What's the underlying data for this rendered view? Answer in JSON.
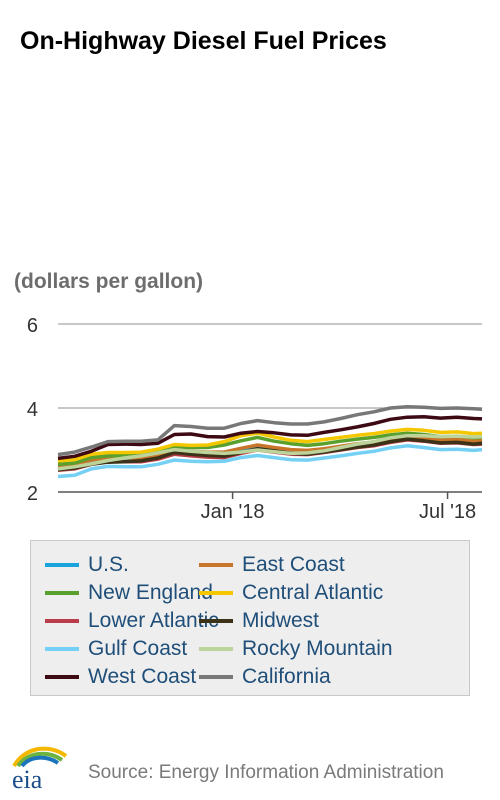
{
  "title": "On-Highway Diesel Fuel Prices",
  "units": "(dollars per gallon)",
  "source": "Source: Energy Information Administration",
  "logo_text": "eia",
  "chart_data": {
    "type": "line",
    "title": "On-Highway Diesel Fuel Prices",
    "ylabel": "(dollars per gallon)",
    "ylim": [
      2,
      6
    ],
    "yticks": [
      "2",
      "4",
      "6"
    ],
    "x_start": "2017-08-07",
    "x_end": "2018-07-30",
    "xticks": [
      {
        "label": "Jan '18",
        "date": "2018-01-01"
      },
      {
        "label": "Jul '18",
        "date": "2018-07-01"
      }
    ],
    "grid": "horizontal",
    "legend_position": "bottom",
    "x": [
      "2017-08-07",
      "2017-08-21",
      "2017-09-04",
      "2017-09-18",
      "2017-10-02",
      "2017-10-16",
      "2017-10-30",
      "2017-11-13",
      "2017-11-27",
      "2017-12-11",
      "2017-12-25",
      "2018-01-08",
      "2018-01-22",
      "2018-02-05",
      "2018-02-19",
      "2018-03-05",
      "2018-03-19",
      "2018-04-02",
      "2018-04-16",
      "2018-04-30",
      "2018-05-14",
      "2018-05-28",
      "2018-06-11",
      "2018-06-25",
      "2018-07-09",
      "2018-07-23",
      "2018-07-30"
    ],
    "series": [
      {
        "name": "U.S.",
        "color": "#1aa3dd",
        "values": [
          2.59,
          2.62,
          2.73,
          2.78,
          2.78,
          2.79,
          2.85,
          2.97,
          2.94,
          2.92,
          2.91,
          3.0,
          3.08,
          3.03,
          2.98,
          2.96,
          3.0,
          3.06,
          3.12,
          3.16,
          3.24,
          3.29,
          3.26,
          3.21,
          3.22,
          3.18,
          3.2
        ]
      },
      {
        "name": "East Coast",
        "color": "#c8752a",
        "values": [
          2.62,
          2.65,
          2.76,
          2.81,
          2.81,
          2.82,
          2.88,
          3.0,
          2.97,
          2.95,
          2.95,
          3.04,
          3.12,
          3.06,
          3.01,
          2.99,
          3.03,
          3.09,
          3.15,
          3.19,
          3.27,
          3.32,
          3.29,
          3.24,
          3.25,
          3.21,
          3.23
        ]
      },
      {
        "name": "New England",
        "color": "#5aa02c",
        "values": [
          2.66,
          2.69,
          2.82,
          2.86,
          2.87,
          2.89,
          2.94,
          3.07,
          3.06,
          3.06,
          3.12,
          3.22,
          3.3,
          3.21,
          3.15,
          3.11,
          3.15,
          3.21,
          3.26,
          3.3,
          3.36,
          3.4,
          3.37,
          3.32,
          3.33,
          3.29,
          3.3
        ]
      },
      {
        "name": "Central Atlantic",
        "color": "#f5c700",
        "values": [
          2.74,
          2.77,
          2.9,
          2.94,
          2.94,
          2.95,
          3.02,
          3.13,
          3.11,
          3.12,
          3.2,
          3.34,
          3.4,
          3.31,
          3.23,
          3.2,
          3.25,
          3.3,
          3.35,
          3.39,
          3.45,
          3.49,
          3.47,
          3.42,
          3.43,
          3.39,
          3.4
        ]
      },
      {
        "name": "Lower Atlantic",
        "color": "#b83c49",
        "values": [
          2.52,
          2.55,
          2.66,
          2.73,
          2.72,
          2.72,
          2.78,
          2.9,
          2.86,
          2.83,
          2.82,
          2.92,
          3.0,
          2.95,
          2.9,
          2.89,
          2.94,
          3.0,
          3.06,
          3.1,
          3.18,
          3.24,
          3.21,
          3.16,
          3.17,
          3.13,
          3.14
        ]
      },
      {
        "name": "Midwest",
        "color": "#3b3218",
        "values": [
          2.53,
          2.57,
          2.66,
          2.71,
          2.72,
          2.74,
          2.81,
          2.94,
          2.9,
          2.87,
          2.85,
          2.94,
          3.03,
          2.98,
          2.92,
          2.9,
          2.95,
          3.01,
          3.07,
          3.12,
          3.2,
          3.26,
          3.22,
          3.17,
          3.18,
          3.14,
          3.16
        ]
      },
      {
        "name": "Gulf Coast",
        "color": "#74d0f4",
        "values": [
          2.37,
          2.4,
          2.55,
          2.61,
          2.6,
          2.6,
          2.66,
          2.76,
          2.73,
          2.72,
          2.73,
          2.82,
          2.87,
          2.82,
          2.77,
          2.76,
          2.81,
          2.86,
          2.92,
          2.97,
          3.05,
          3.1,
          3.06,
          3.01,
          3.02,
          2.99,
          3.01
        ]
      },
      {
        "name": "Rocky Mountain",
        "color": "#bcd49b",
        "values": [
          2.55,
          2.6,
          2.67,
          2.75,
          2.81,
          2.86,
          2.93,
          3.01,
          2.97,
          2.94,
          2.92,
          2.95,
          3.0,
          2.96,
          2.92,
          2.93,
          2.98,
          3.06,
          3.14,
          3.2,
          3.29,
          3.34,
          3.34,
          3.32,
          3.33,
          3.31,
          3.32
        ]
      },
      {
        "name": "West Coast",
        "color": "#3d0a14",
        "values": [
          2.8,
          2.85,
          2.97,
          3.13,
          3.14,
          3.13,
          3.16,
          3.37,
          3.38,
          3.32,
          3.31,
          3.4,
          3.44,
          3.41,
          3.36,
          3.35,
          3.42,
          3.48,
          3.55,
          3.63,
          3.73,
          3.78,
          3.79,
          3.76,
          3.78,
          3.75,
          3.74
        ]
      },
      {
        "name": "California",
        "color": "#787878",
        "values": [
          2.89,
          2.95,
          3.07,
          3.2,
          3.21,
          3.21,
          3.24,
          3.58,
          3.56,
          3.52,
          3.52,
          3.63,
          3.7,
          3.65,
          3.62,
          3.62,
          3.67,
          3.75,
          3.84,
          3.91,
          4.0,
          4.03,
          4.02,
          3.99,
          4.0,
          3.98,
          3.97
        ]
      }
    ]
  }
}
